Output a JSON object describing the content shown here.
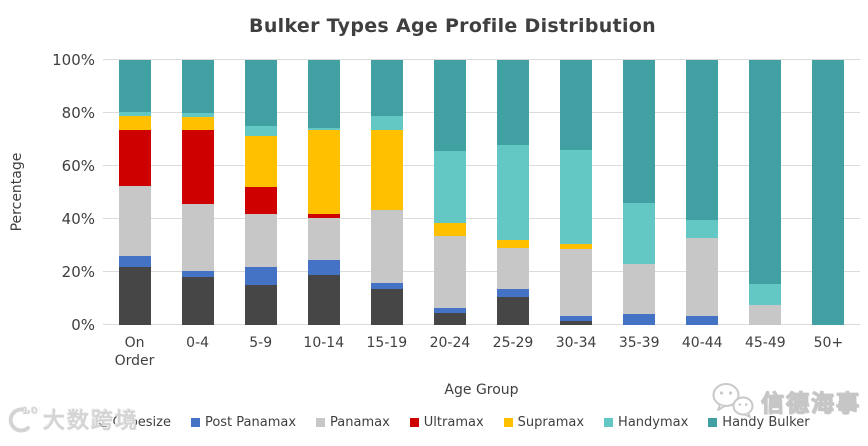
{
  "chart_data": {
    "type": "bar",
    "stacked": true,
    "title": "Bulker Types Age Profile Distribution",
    "xlabel": "Age Group",
    "ylabel": "Percentage",
    "ylim": [
      0,
      100
    ],
    "yticks": [
      0,
      20,
      40,
      60,
      80,
      100
    ],
    "ytick_suffix": "%",
    "grid": true,
    "gridline_color": "#dcdcdc",
    "legend_position": "bottom",
    "categories": [
      "On Order",
      "0-4",
      "5-9",
      "10-14",
      "15-19",
      "20-24",
      "25-29",
      "30-34",
      "35-39",
      "40-44",
      "45-49",
      "50+"
    ],
    "series": [
      {
        "name": "Capesize",
        "color": "#464646",
        "values": [
          22,
          18,
          15,
          19,
          13.5,
          4.5,
          10.5,
          1.5,
          0,
          0,
          0,
          0
        ]
      },
      {
        "name": "Post Panamax",
        "color": "#4472c4",
        "values": [
          4,
          2.5,
          7,
          5.5,
          2.5,
          2,
          3,
          2,
          4,
          3.5,
          0,
          0
        ]
      },
      {
        "name": "Panamax",
        "color": "#c7c7c7",
        "values": [
          26.5,
          25,
          20,
          16,
          27.5,
          27,
          15.5,
          25,
          19,
          29.5,
          7.5,
          0
        ]
      },
      {
        "name": "Ultramax",
        "color": "#ce0000",
        "values": [
          21,
          28,
          10,
          1.5,
          0,
          0,
          0,
          0,
          0,
          0,
          0,
          0
        ]
      },
      {
        "name": "Supramax",
        "color": "#ffc000",
        "values": [
          5.5,
          5,
          19.5,
          31.5,
          30,
          5,
          3,
          2,
          0,
          0,
          0,
          0
        ]
      },
      {
        "name": "Handymax",
        "color": "#63c8c3",
        "values": [
          1.5,
          1.5,
          3.5,
          1,
          5.5,
          27,
          36,
          35.5,
          23,
          6.5,
          8,
          0
        ]
      },
      {
        "name": "Handy Bulker",
        "color": "#41a0a1",
        "values": [
          19.5,
          20,
          25,
          25.5,
          21,
          34.5,
          32,
          34,
          54,
          60.5,
          84.5,
          100
        ]
      }
    ]
  },
  "watermarks": {
    "bottom_left_text": "大数跨境",
    "bottom_left_logo": "c100-logo",
    "bottom_right_text": "信德海事",
    "bottom_right_logo": "wechat-icon"
  }
}
